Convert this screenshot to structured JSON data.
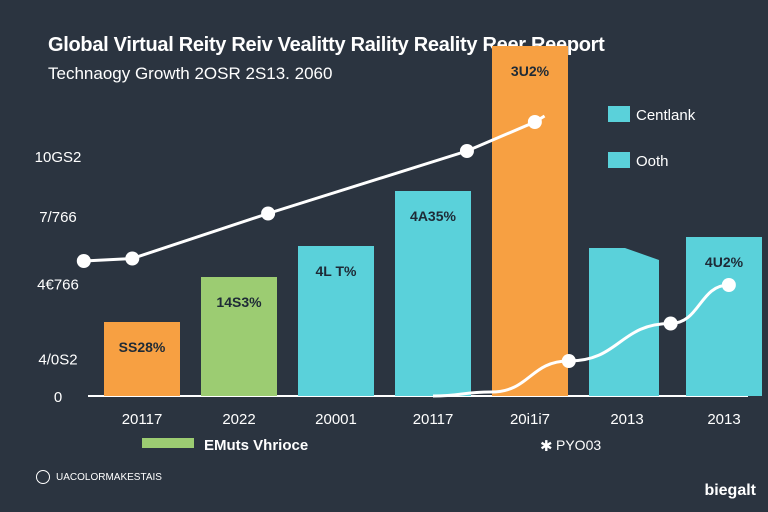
{
  "header": {
    "title": "Global Virtual Reity Reiv Vealitty Raility Reality Reer Reeport",
    "subtitle": "Technaogy Growth   2OSR 2S13. 2060"
  },
  "footer": {
    "source": "UACOLORMAKESTAIS",
    "source_icon": "circle-icon",
    "brand": "biegalt"
  },
  "chart_data": {
    "type": "bar",
    "categories": [
      "20117",
      "2022",
      "20001",
      "20117",
      "20i1i7",
      "2013",
      "2013"
    ],
    "bar_values": [
      148,
      238,
      300,
      410,
      700,
      296,
      318
    ],
    "bar_labels": [
      "SS28%",
      "14S3%",
      "4L T%",
      "4A35%",
      "3U2%",
      "",
      "4U2%"
    ],
    "bar_colors": [
      "#f7a042",
      "#9ccc72",
      "#5ad1da",
      "#5ad1da",
      "#f7a042",
      "#5ad1da",
      "#5ad1da"
    ],
    "y_ticks": [
      {
        "value": 0,
        "label": "0"
      },
      {
        "value": 75,
        "label": "4/0S2"
      },
      {
        "value": 225,
        "label": "4€766"
      },
      {
        "value": 360,
        "label": "7/766"
      },
      {
        "value": 480,
        "label": "10GS2"
      }
    ],
    "ylim": [
      0,
      600
    ],
    "line_series": [
      {
        "x": -0.6,
        "y": 270
      },
      {
        "x": -0.1,
        "y": 275
      },
      {
        "x": 1.3,
        "y": 365
      },
      {
        "x": 3.35,
        "y": 490
      },
      {
        "x": 4.05,
        "y": 548
      }
    ],
    "curve_series": [
      {
        "x": 3.0,
        "y": 0
      },
      {
        "x": 3.6,
        "y": 8
      },
      {
        "x": 4.4,
        "y": 70
      },
      {
        "x": 5.45,
        "y": 145
      },
      {
        "x": 6.05,
        "y": 222
      }
    ],
    "legend": [
      {
        "label": "Centlank",
        "color": "#5ad1da"
      },
      {
        "label": "Ooth",
        "color": "#5ad1da"
      }
    ],
    "bottom_legend": [
      {
        "label": "EMuts Vhrioce",
        "color": "#9ccc72"
      },
      {
        "label": "PYO03",
        "marker": "star"
      }
    ],
    "grid": false,
    "legend_position": "top-right"
  }
}
